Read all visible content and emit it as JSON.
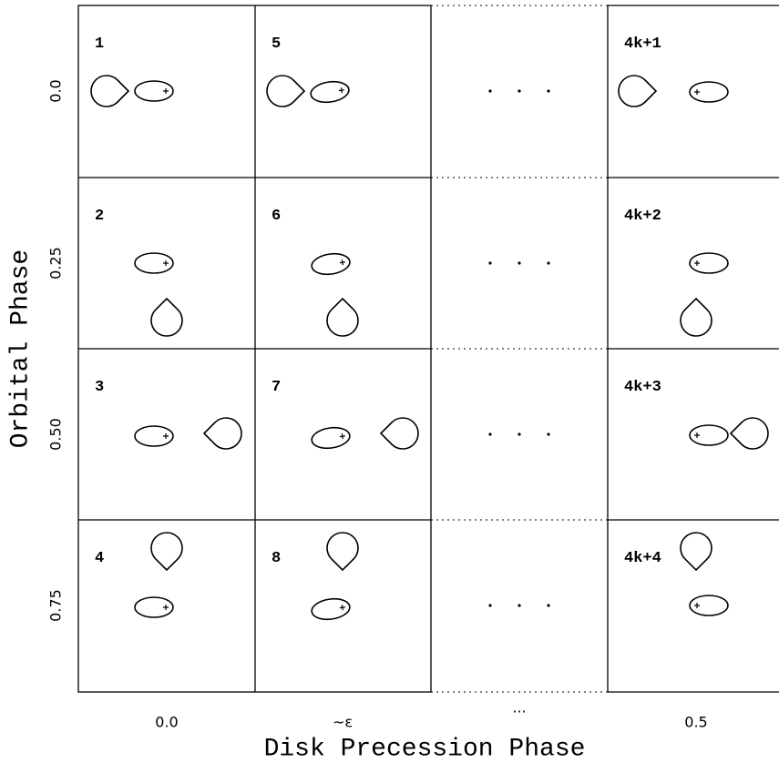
{
  "panels": [
    [
      "1",
      "5",
      "4k+1"
    ],
    [
      "2",
      "6",
      "4k+2"
    ],
    [
      "3",
      "7",
      "4k+3"
    ],
    [
      "4",
      "8",
      "4k+4"
    ]
  ],
  "row_labels": [
    "0.0",
    "0.25",
    "0.50",
    "0.75"
  ],
  "column_labels": [
    "0.0",
    "~ε",
    "...",
    "0.5"
  ],
  "y_axis_title": "Orbital Phase",
  "x_axis_title": "Disk Precession Phase"
}
